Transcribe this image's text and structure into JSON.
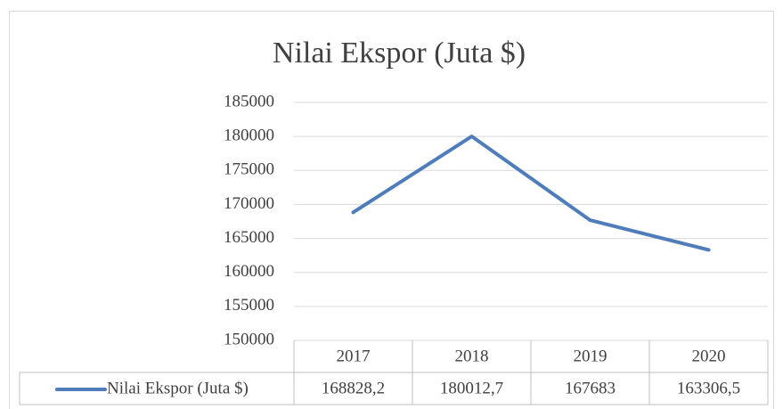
{
  "chart_data": {
    "type": "line",
    "title": "Nilai Ekspor (Juta $)",
    "categories": [
      "2017",
      "2018",
      "2019",
      "2020"
    ],
    "series": [
      {
        "name": "Nilai Ekspor (Juta $)",
        "color": "#4f7dbb",
        "values": [
          168828.2,
          180012.7,
          167683,
          163306.5
        ],
        "value_labels": [
          "168828,2",
          "180012,7",
          "167683",
          "163306,5"
        ]
      }
    ],
    "ylim": [
      150000,
      185000
    ],
    "yticks": [
      150000,
      155000,
      160000,
      165000,
      170000,
      175000,
      180000,
      185000
    ],
    "grid": true,
    "data_table": true
  }
}
